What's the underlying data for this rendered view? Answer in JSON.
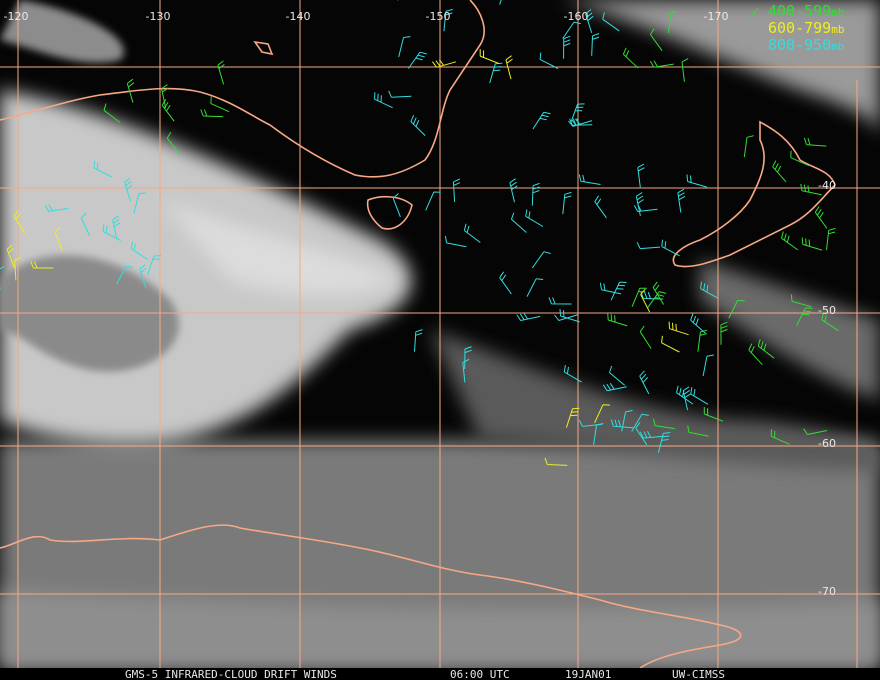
{
  "map": {
    "longitude_labels": [
      -120,
      -130,
      -140,
      -150,
      -160,
      -170
    ],
    "latitude_labels": [
      -40,
      -50,
      -60,
      -70
    ],
    "legend": [
      {
        "range": "400-599",
        "unit": "mb",
        "color": "#33dd33"
      },
      {
        "range": "600-799",
        "unit": "mb",
        "color": "#eeee22"
      },
      {
        "range": "800-950",
        "unit": "mb",
        "color": "#33dddd"
      }
    ],
    "footer": {
      "source": "GMS-5 INFRARED-CLOUD DRIFT WINDS",
      "time": "06:00 UTC",
      "date": "19JAN01",
      "credit": "UW-CIMSS"
    }
  }
}
